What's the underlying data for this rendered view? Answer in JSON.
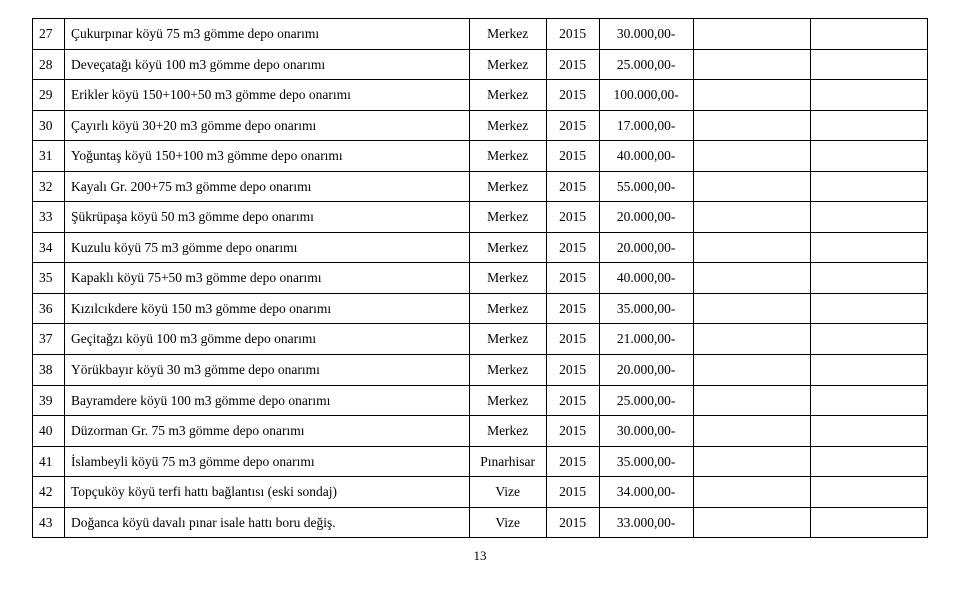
{
  "page_number": "13",
  "columns": {
    "num": "col-num",
    "desc": "col-desc",
    "loc": "col-loc",
    "year": "col-year",
    "amt": "col-amt",
    "e1": "col-e1",
    "e2": "col-e2"
  },
  "rows": [
    {
      "num": "27",
      "desc": "Çukurpınar köyü 75 m3 gömme depo onarımı",
      "loc": "Merkez",
      "year": "2015",
      "amt": "30.000,00-"
    },
    {
      "num": "28",
      "desc": "Deveçatağı köyü 100 m3 gömme depo onarımı",
      "loc": "Merkez",
      "year": "2015",
      "amt": "25.000,00-"
    },
    {
      "num": "29",
      "desc": "Erikler köyü 150+100+50 m3 gömme depo onarımı",
      "loc": "Merkez",
      "year": "2015",
      "amt": "100.000,00-"
    },
    {
      "num": "30",
      "desc": "Çayırlı köyü 30+20 m3 gömme depo onarımı",
      "loc": "Merkez",
      "year": "2015",
      "amt": "17.000,00-"
    },
    {
      "num": "31",
      "desc": "Yoğuntaş köyü 150+100 m3 gömme depo onarımı",
      "loc": "Merkez",
      "year": "2015",
      "amt": "40.000,00-"
    },
    {
      "num": "32",
      "desc": "Kayalı Gr. 200+75 m3 gömme depo onarımı",
      "loc": "Merkez",
      "year": "2015",
      "amt": "55.000,00-"
    },
    {
      "num": "33",
      "desc": "Şükrüpaşa köyü 50 m3 gömme depo onarımı",
      "loc": "Merkez",
      "year": "2015",
      "amt": "20.000,00-"
    },
    {
      "num": "34",
      "desc": "Kuzulu köyü 75 m3 gömme depo onarımı",
      "loc": "Merkez",
      "year": "2015",
      "amt": "20.000,00-"
    },
    {
      "num": "35",
      "desc": "Kapaklı köyü 75+50 m3 gömme depo onarımı",
      "loc": "Merkez",
      "year": "2015",
      "amt": "40.000,00-"
    },
    {
      "num": "36",
      "desc": "Kızılcıkdere köyü 150 m3 gömme depo onarımı",
      "loc": "Merkez",
      "year": "2015",
      "amt": "35.000,00-"
    },
    {
      "num": "37",
      "desc": "Geçitağzı köyü 100 m3 gömme depo onarımı",
      "loc": "Merkez",
      "year": "2015",
      "amt": "21.000,00-"
    },
    {
      "num": "38",
      "desc": "Yörükbayır köyü 30 m3 gömme depo onarımı",
      "loc": "Merkez",
      "year": "2015",
      "amt": "20.000,00-"
    },
    {
      "num": "39",
      "desc": "Bayramdere köyü 100 m3 gömme depo onarımı",
      "loc": "Merkez",
      "year": "2015",
      "amt": "25.000,00-"
    },
    {
      "num": "40",
      "desc": "Düzorman Gr. 75 m3 gömme depo onarımı",
      "loc": "Merkez",
      "year": "2015",
      "amt": "30.000,00-"
    },
    {
      "num": "41",
      "desc": "İslambeyli köyü 75 m3 gömme depo onarımı",
      "loc": "Pınarhisar",
      "year": "2015",
      "amt": "35.000,00-"
    },
    {
      "num": "42",
      "desc": "Topçuköy köyü terfi hattı bağlantısı (eski sondaj)",
      "loc": "Vize",
      "year": "2015",
      "amt": "34.000,00-"
    },
    {
      "num": "43",
      "desc": "Doğanca köyü davalı pınar isale hattı boru değiş.",
      "loc": "Vize",
      "year": "2015",
      "amt": "33.000,00-"
    }
  ]
}
